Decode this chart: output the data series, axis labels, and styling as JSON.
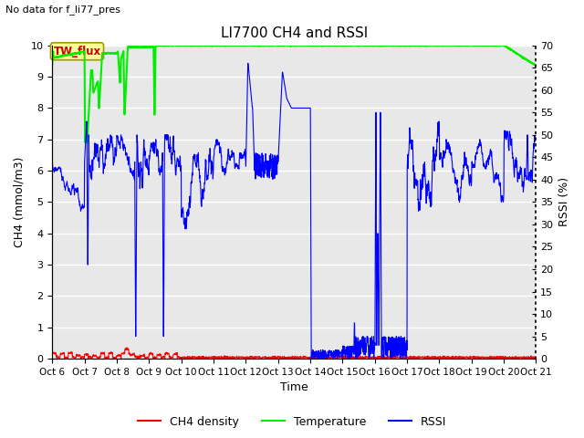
{
  "title": "LI7700 CH4 and RSSI",
  "top_annotation": "No data for f_li77_pres",
  "xlabel": "Time",
  "ylabel_left": "CH4 (mmol/m3)",
  "ylabel_right": "RSSI (%)",
  "ylim_left": [
    0.0,
    10.0
  ],
  "ylim_right": [
    0,
    70
  ],
  "yticks_left": [
    0.0,
    1.0,
    2.0,
    3.0,
    4.0,
    5.0,
    6.0,
    7.0,
    8.0,
    9.0,
    10.0
  ],
  "yticks_right": [
    0,
    5,
    10,
    15,
    20,
    25,
    30,
    35,
    40,
    45,
    50,
    55,
    60,
    65,
    70
  ],
  "xtick_labels": [
    "Oct 6",
    "Oct 7",
    "Oct 8",
    "Oct 9",
    "Oct 10",
    "Oct 11",
    "Oct 12",
    "Oct 13",
    "Oct 14",
    "Oct 15",
    "Oct 16",
    "Oct 17",
    "Oct 18",
    "Oct 19",
    "Oct 20",
    "Oct 21"
  ],
  "bg_color": "#e8e8e8",
  "plot_bg_color": "#e8e8e8",
  "fig_bg_color": "#ffffff",
  "grid_color": "#ffffff",
  "ch4_color": "#ff0000",
  "temp_color": "#00ee00",
  "rssi_color": "#0000ff",
  "annotation_box_facecolor": "#ffff99",
  "annotation_box_edgecolor": "#999900",
  "annotation_text_color": "#cc0000",
  "annotation_text": "TW_flux",
  "legend_labels": [
    "CH4 density",
    "Temperature",
    "RSSI"
  ]
}
